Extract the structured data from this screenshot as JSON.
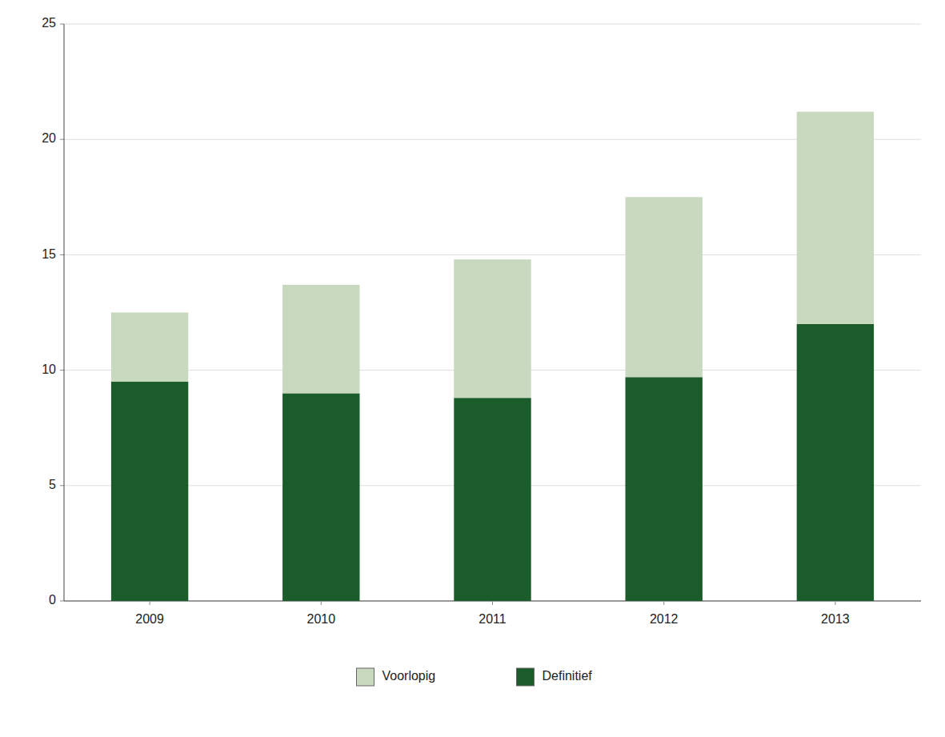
{
  "chart_data": {
    "type": "bar",
    "stacked": true,
    "categories": [
      "2009",
      "2010",
      "2011",
      "2012",
      "2013"
    ],
    "series": [
      {
        "name": "Definitief",
        "color": "#1a5c2a",
        "values": [
          9.5,
          9.0,
          8.8,
          9.7,
          12.0
        ]
      },
      {
        "name": "Voorlopig",
        "color": "#c8d9c0",
        "values": [
          3.0,
          4.7,
          6.0,
          7.8,
          9.2
        ]
      }
    ],
    "ylim": [
      0,
      25
    ],
    "yticks": [
      0,
      5,
      10,
      15,
      20,
      25
    ],
    "grid": true,
    "legend": "bottom"
  }
}
